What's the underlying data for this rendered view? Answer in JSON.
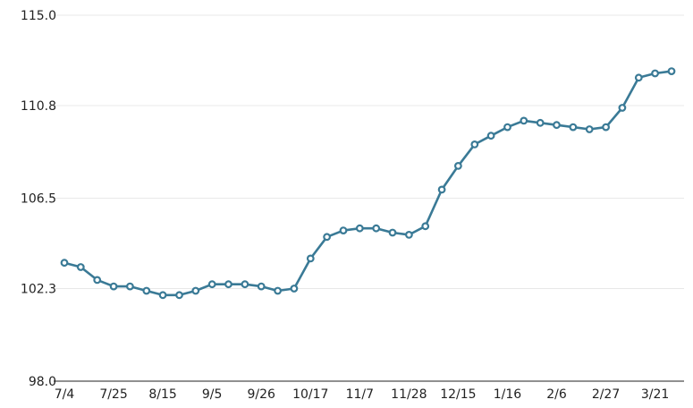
{
  "chart_data": {
    "type": "line",
    "title": "",
    "xlabel": "",
    "ylabel": "",
    "ylim": [
      98.0,
      115.0
    ],
    "yticks": [
      "98.0",
      "102.3",
      "106.5",
      "110.8",
      "115.0"
    ],
    "xticks": [
      "7/4",
      "7/25",
      "8/15",
      "9/5",
      "9/26",
      "10/17",
      "11/7",
      "11/28",
      "12/15",
      "1/16",
      "2/6",
      "2/27",
      "3/21"
    ],
    "grid": true,
    "legend": "none",
    "colors": {
      "series": "#3a7a96",
      "grid": "#e8e8e8",
      "axis": "#222222"
    },
    "series": [
      {
        "values": [
          103.5,
          103.3,
          102.7,
          102.4,
          102.4,
          102.2,
          102.0,
          102.0,
          102.2,
          102.5,
          102.5,
          102.5,
          102.4,
          102.2,
          102.3,
          103.7,
          104.7,
          105.0,
          105.1,
          105.1,
          104.9,
          104.8,
          105.2,
          106.9,
          108.0,
          109.0,
          109.4,
          109.8,
          110.1,
          110.0,
          109.9,
          109.8,
          109.7,
          109.8,
          110.7,
          112.1,
          112.3,
          112.4
        ]
      }
    ]
  }
}
